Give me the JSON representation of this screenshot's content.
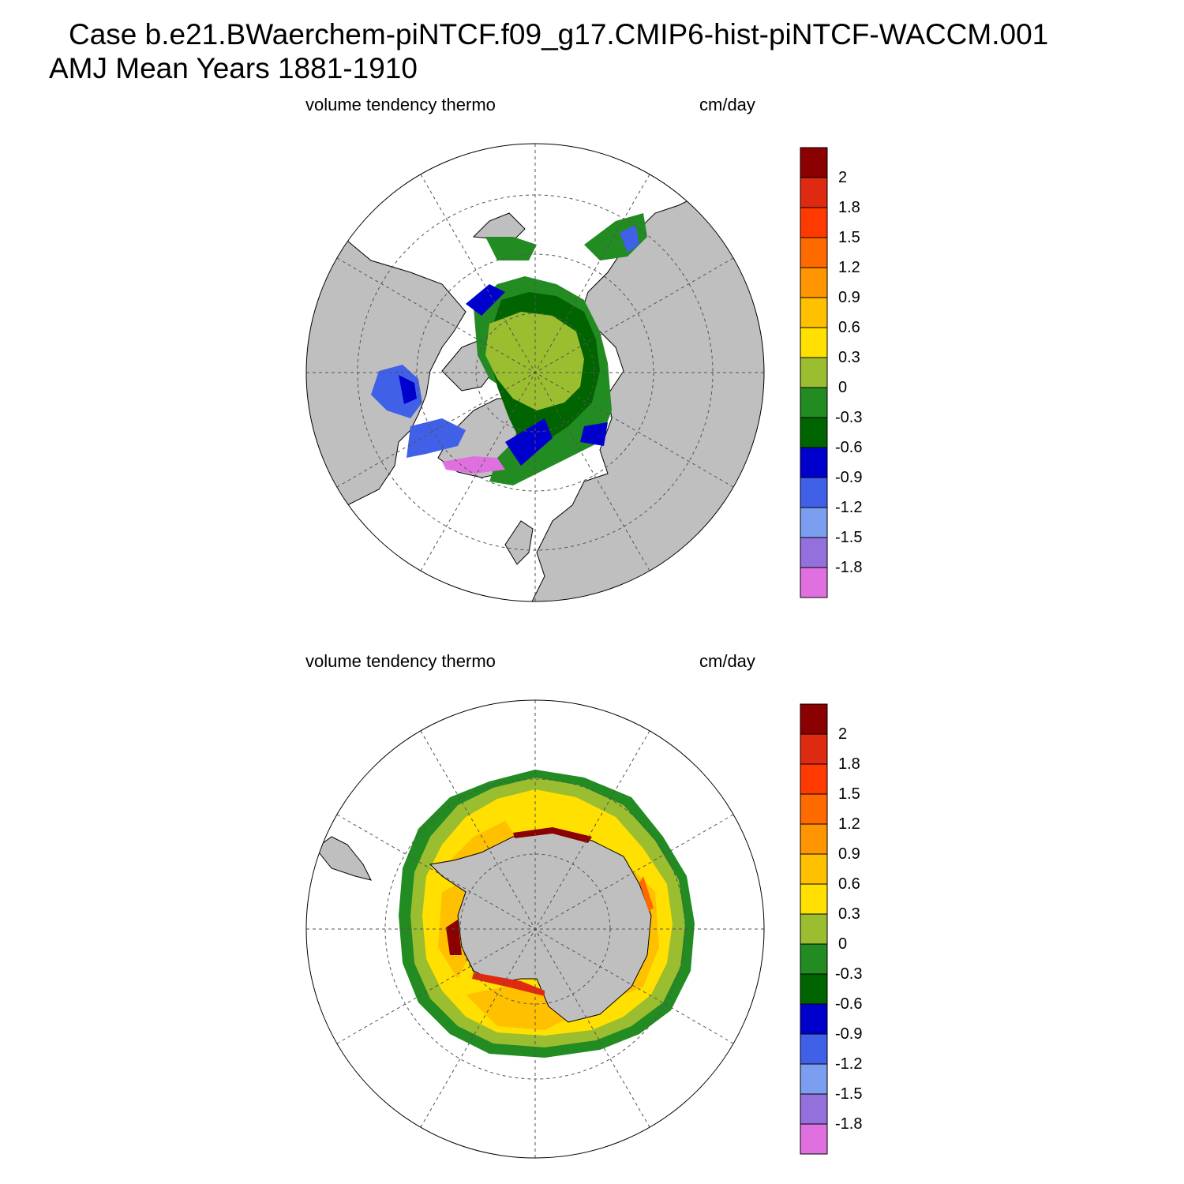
{
  "header": {
    "title_line1": "Case b.e21.BWaerchem-piNTCF.f09_g17.CMIP6-hist-piNTCF-WACCM.001",
    "title_line2": "AMJ Mean   Years 1881-1910"
  },
  "panels": [
    {
      "id": "north",
      "hemisphere": "Northern",
      "field_label": "volume tendency thermo",
      "units_label": "cm/day"
    },
    {
      "id": "south",
      "hemisphere": "Southern",
      "field_label": "volume tendency thermo",
      "units_label": "cm/day"
    }
  ],
  "colorbar": {
    "levels": [
      "2",
      "1.8",
      "1.5",
      "1.2",
      "0.9",
      "0.6",
      "0.3",
      "0",
      "-0.3",
      "-0.6",
      "-0.9",
      "-1.2",
      "-1.5",
      "-1.8"
    ],
    "colors": [
      "#8b0000",
      "#dd2a10",
      "#ff3a00",
      "#ff6a00",
      "#ff9500",
      "#ffc000",
      "#ffe000",
      "#9bbd30",
      "#228b22",
      "#006400",
      "#0000cd",
      "#4060e8",
      "#7b9ef0",
      "#9370db",
      "#e070e0"
    ]
  },
  "colors": {
    "land": "#bfbfbf",
    "ocean": "#ffffff",
    "grid": "#555555"
  }
}
